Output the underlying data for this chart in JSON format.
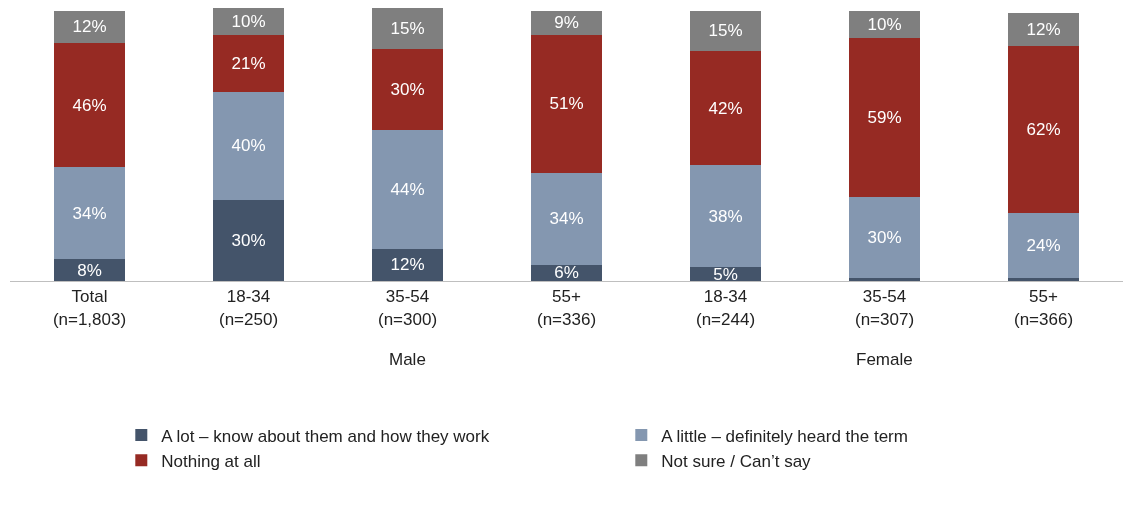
{
  "chart_data": {
    "type": "bar",
    "stacked": true,
    "categories": [
      "Total\n(n=1,803)",
      "18-34\n(n=250)",
      "35-54\n(n=300)",
      "55+\n(n=336)",
      "18-34\n(n=244)",
      "35-54\n(n=307)",
      "55+\n(n=366)"
    ],
    "series": [
      {
        "name": "A lot – know about them and how they work",
        "color": "#44546a",
        "values": [
          8,
          30,
          12,
          6,
          5,
          1,
          1
        ],
        "value_labels": [
          "8%",
          "30%",
          "12%",
          "6%",
          "5%",
          null,
          null
        ]
      },
      {
        "name": "A little – definitely heard the term",
        "color": "#8497b0",
        "values": [
          34,
          40,
          44,
          34,
          38,
          30,
          24
        ],
        "value_labels": [
          "34%",
          "40%",
          "44%",
          "34%",
          "38%",
          "30%",
          "24%"
        ]
      },
      {
        "name": "Nothing at all",
        "color": "#962a23",
        "values": [
          46,
          21,
          30,
          51,
          42,
          59,
          62
        ],
        "value_labels": [
          "46%",
          "21%",
          "30%",
          "51%",
          "42%",
          "59%",
          "62%"
        ]
      },
      {
        "name": "Not sure / Can’t say",
        "color": "#7f7f7f",
        "values": [
          12,
          10,
          15,
          9,
          15,
          10,
          12
        ],
        "value_labels": [
          "12%",
          "10%",
          "15%",
          "9%",
          "15%",
          "10%",
          "12%"
        ]
      }
    ],
    "annotations": [
      "Male",
      "Female"
    ],
    "ylim": [
      0,
      101
    ],
    "tick_labels": "x",
    "legend": "bottom"
  }
}
